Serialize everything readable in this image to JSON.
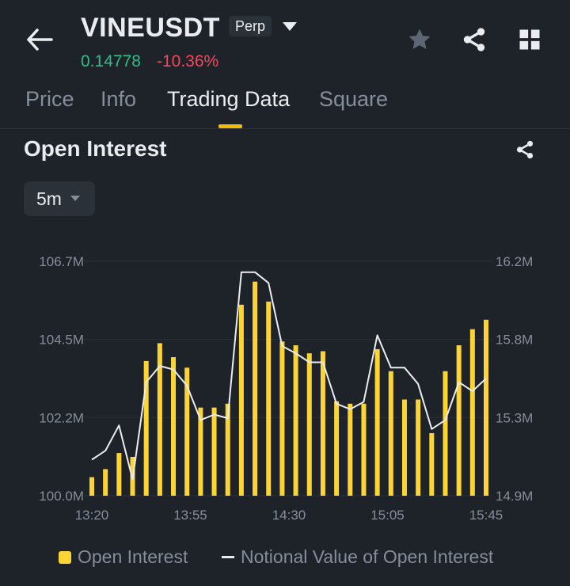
{
  "header": {
    "symbol": "VINEUSDT",
    "badge": "Perp",
    "price": "0.14778",
    "change": "-10.36%",
    "icons": [
      "back-arrow-icon",
      "caret-down-icon",
      "star-icon",
      "share-icon",
      "grid-icon"
    ]
  },
  "tabs": [
    {
      "label": "Price",
      "active": false
    },
    {
      "label": "Info",
      "active": false
    },
    {
      "label": "Trading Data",
      "active": true
    },
    {
      "label": "Square",
      "active": false
    }
  ],
  "section": {
    "title": "Open Interest",
    "interval": "5m"
  },
  "colors": {
    "background": "#1e2329",
    "bar": "#fcd535",
    "line": "#eaecef",
    "up": "#2ebd85",
    "down": "#f6465d",
    "muted": "#848e9c",
    "accent": "#f0b90b"
  },
  "chart_data": {
    "type": "bar",
    "x_ticks": [
      "13:20",
      "13:55",
      "14:30",
      "15:05",
      "15:45"
    ],
    "left_axis": {
      "ticks": [
        "100.0M",
        "102.2M",
        "104.5M",
        "106.7M"
      ],
      "range": [
        100.0,
        106.7
      ]
    },
    "right_axis": {
      "ticks": [
        "14.9M",
        "15.3M",
        "15.8M",
        "16.2M"
      ],
      "range": [
        14.9,
        16.2
      ]
    },
    "grid": true,
    "legend_position": "bottom",
    "series": [
      {
        "name": "Open Interest",
        "kind": "bar",
        "axis": "left",
        "values": [
          100.53,
          100.76,
          101.22,
          101.11,
          103.85,
          104.36,
          103.96,
          103.66,
          102.52,
          102.52,
          102.63,
          105.46,
          106.12,
          105.55,
          104.41,
          104.3,
          104.07,
          104.13,
          102.7,
          102.63,
          102.63,
          104.19,
          103.56,
          102.75,
          102.75,
          101.79,
          103.56,
          104.3,
          104.76,
          105.03
        ]
      },
      {
        "name": "Notional Value of Open Interest",
        "kind": "line",
        "axis": "right",
        "values": [
          15.1,
          15.15,
          15.29,
          14.99,
          15.53,
          15.62,
          15.6,
          15.51,
          15.32,
          15.35,
          15.33,
          16.14,
          16.14,
          16.08,
          15.73,
          15.69,
          15.64,
          15.64,
          15.41,
          15.38,
          15.42,
          15.79,
          15.61,
          15.61,
          15.52,
          15.27,
          15.32,
          15.53,
          15.48,
          15.55
        ]
      }
    ]
  }
}
